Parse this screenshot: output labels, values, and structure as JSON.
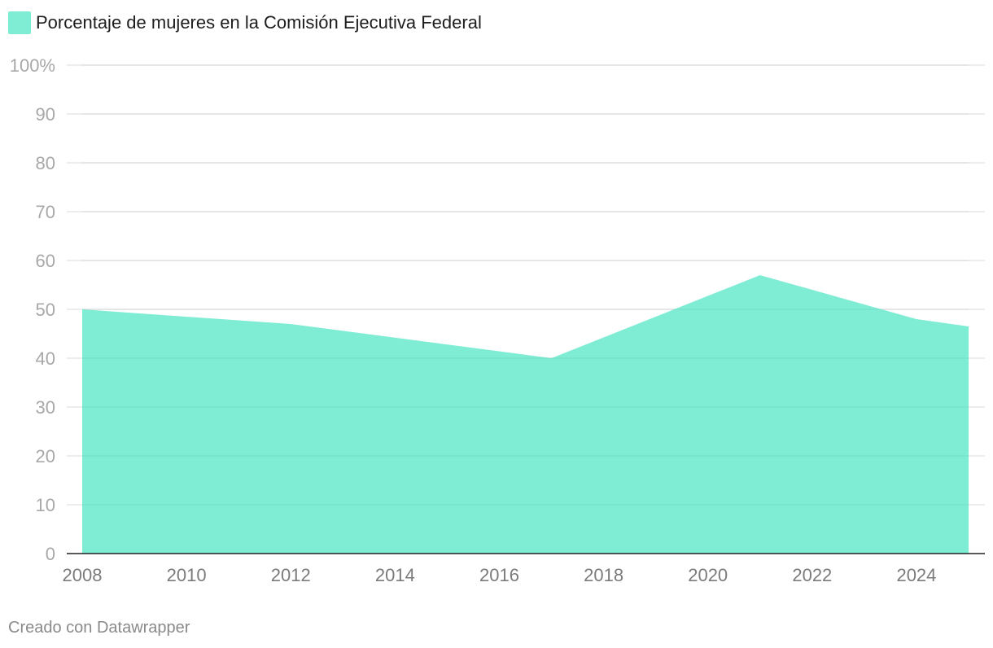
{
  "colors": {
    "area": "#7fecd4",
    "grid": "#e2e2e2",
    "axis": "#222222"
  },
  "chart_data": {
    "type": "area",
    "title": "",
    "legend": [
      "Porcentaje de mujeres en la Comisión Ejecutiva Federal"
    ],
    "legend_position": "top-left",
    "series": [
      {
        "name": "Porcentaje de mujeres en la Comisión Ejecutiva Federal",
        "x": [
          2008,
          2012,
          2017,
          2021,
          2024,
          2025
        ],
        "values": [
          50,
          47,
          40,
          57,
          48,
          46.5
        ]
      }
    ],
    "xlim": [
      2008,
      2025
    ],
    "ylim": [
      0,
      100
    ],
    "y_ticks": [
      0,
      10,
      20,
      30,
      40,
      50,
      60,
      70,
      80,
      90,
      100
    ],
    "y_tick_labels": [
      "0",
      "10",
      "20",
      "30",
      "40",
      "50",
      "60",
      "70",
      "80",
      "90",
      "100%"
    ],
    "x_ticks": [
      2008,
      2010,
      2012,
      2014,
      2016,
      2018,
      2020,
      2022,
      2024
    ],
    "x_tick_labels": [
      "2008",
      "2010",
      "2012",
      "2014",
      "2016",
      "2018",
      "2020",
      "2022",
      "2024"
    ],
    "grid": true,
    "xlabel": "",
    "ylabel": ""
  },
  "footer": {
    "credit": "Creado con Datawrapper"
  }
}
